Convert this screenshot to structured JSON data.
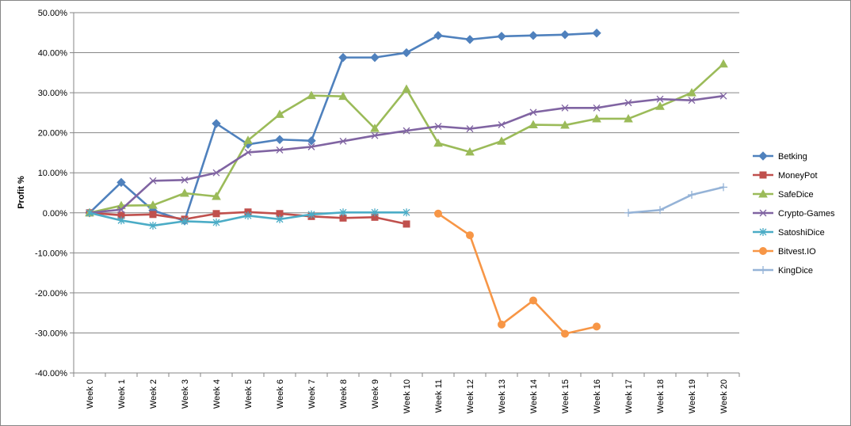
{
  "chart_data": {
    "type": "line",
    "title": "",
    "ylabel": "Profit %",
    "xlabel": "",
    "ylim": [
      -40,
      50
    ],
    "yticks": [
      50,
      40,
      30,
      20,
      10,
      0,
      -10,
      -20,
      -30,
      -40
    ],
    "ytick_labels": [
      "50.00%",
      "40.00%",
      "30.00%",
      "20.00%",
      "10.00%",
      "0.00%",
      "-10.00%",
      "-20.00%",
      "-30.00%",
      "-40.00%"
    ],
    "grid": "horizontal",
    "legend_position": "right",
    "categories": [
      "Week 0",
      "Week 1",
      "Week 2",
      "Week 3",
      "Week 4",
      "Week 5",
      "Week 6",
      "Week 7",
      "Week 8",
      "Week 9",
      "Week 10",
      "Week 11",
      "Week 12",
      "Week 13",
      "Week 14",
      "Week 15",
      "Week 16",
      "Week 17",
      "Week 18",
      "Week 19",
      "Week 20"
    ],
    "series": [
      {
        "name": "Betking",
        "color": "#4F81BD",
        "marker": "diamond",
        "values": [
          0,
          7.6,
          0.6,
          -2.0,
          22.3,
          17.1,
          18.3,
          18.0,
          38.8,
          38.8,
          40.0,
          44.3,
          43.3,
          44.1,
          44.3,
          44.5,
          44.9,
          null,
          null,
          null,
          null
        ]
      },
      {
        "name": "MoneyPot",
        "color": "#C0504D",
        "marker": "square",
        "values": [
          0,
          -0.6,
          -0.4,
          -1.6,
          -0.2,
          0.2,
          -0.2,
          -0.9,
          -1.3,
          -1.1,
          -2.8,
          null,
          null,
          null,
          null,
          null,
          null,
          null,
          null,
          null,
          null
        ]
      },
      {
        "name": "SafeDice",
        "color": "#9BBB59",
        "marker": "triangle",
        "values": [
          0,
          1.8,
          1.9,
          4.9,
          4.1,
          18.1,
          24.6,
          29.3,
          29.1,
          21.1,
          30.9,
          17.4,
          15.2,
          17.9,
          22.0,
          21.9,
          23.5,
          23.5,
          26.6,
          30.0,
          37.2
        ]
      },
      {
        "name": "Crypto-Games",
        "color": "#8064A2",
        "marker": "x",
        "values": [
          0,
          0.8,
          8.0,
          8.2,
          10.0,
          15.1,
          15.7,
          16.5,
          17.9,
          19.3,
          20.5,
          21.6,
          21.0,
          22.0,
          25.1,
          26.2,
          26.2,
          27.5,
          28.4,
          28.1,
          29.2
        ]
      },
      {
        "name": "SatoshiDice",
        "color": "#4BACC6",
        "marker": "star",
        "values": [
          0,
          -1.9,
          -3.2,
          -2.1,
          -2.4,
          -0.7,
          -1.6,
          -0.4,
          0.1,
          0.1,
          0.1,
          null,
          null,
          null,
          null,
          null,
          null,
          null,
          null,
          null,
          null
        ]
      },
      {
        "name": "Bitvest.IO",
        "color": "#F79646",
        "marker": "circle",
        "values": [
          null,
          null,
          null,
          null,
          null,
          null,
          null,
          null,
          null,
          null,
          null,
          -0.2,
          -5.6,
          -27.9,
          -21.9,
          -30.2,
          -28.4,
          null,
          null,
          null,
          null
        ]
      },
      {
        "name": "KingDice",
        "color": "#95B3D7",
        "marker": "plus",
        "values": [
          null,
          null,
          null,
          null,
          null,
          null,
          null,
          null,
          null,
          null,
          null,
          null,
          null,
          null,
          null,
          null,
          null,
          0,
          0.7,
          4.5,
          6.4
        ]
      }
    ]
  }
}
